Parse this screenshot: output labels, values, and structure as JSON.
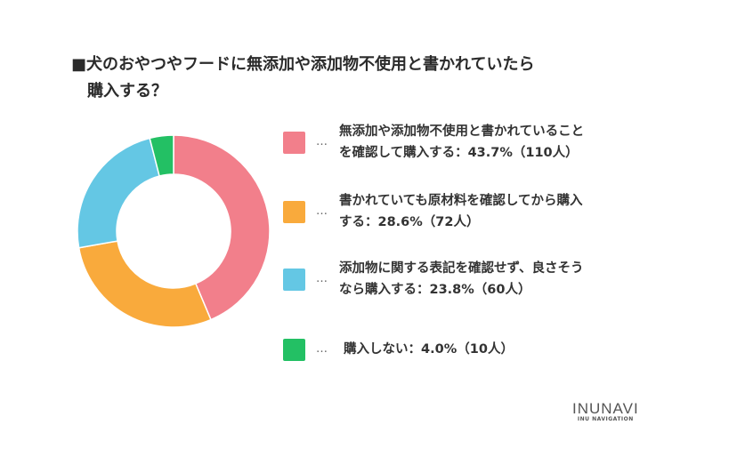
{
  "title": {
    "line1": "■犬のおやつやフードに無添加や添加物不使用と書かれていたら",
    "line2": "購入する？"
  },
  "legend_marker": "…",
  "chart_data": {
    "type": "pie",
    "donut": true,
    "title": "■犬のおやつやフードに無添加や添加物不使用と書かれていたら購入する？",
    "legend_placement": "right",
    "series": [
      {
        "label": "無添加や添加物不使用と書かれていることを確認して購入する",
        "value": 43.7,
        "count": 110,
        "text1": "無添加や添加物不使用と書かれていること",
        "text2": "を確認して購入する：43.7%（110人）",
        "color": "#f27f8b"
      },
      {
        "label": "書かれていても原材料を確認してから購入する",
        "value": 28.6,
        "count": 72,
        "text1": "書かれていても原材料を確認してから購入",
        "text2": "する：28.6%（72人）",
        "color": "#f9aa3c"
      },
      {
        "label": "添加物に関する表記を確認せず、良さそうなら購入する",
        "value": 23.8,
        "count": 60,
        "text1": "添加物に関する表記を確認せず、良さそう",
        "text2": "なら購入する：23.8%（60人）",
        "color": "#64c7e4"
      },
      {
        "label": "購入しない",
        "value": 4.0,
        "count": 10,
        "text1": " 購入しない：4.0%（10人）",
        "text2": "",
        "color": "#23c064"
      }
    ]
  },
  "logo": {
    "name": "INUNAVI",
    "tagline": "INU NAVIGATION"
  }
}
